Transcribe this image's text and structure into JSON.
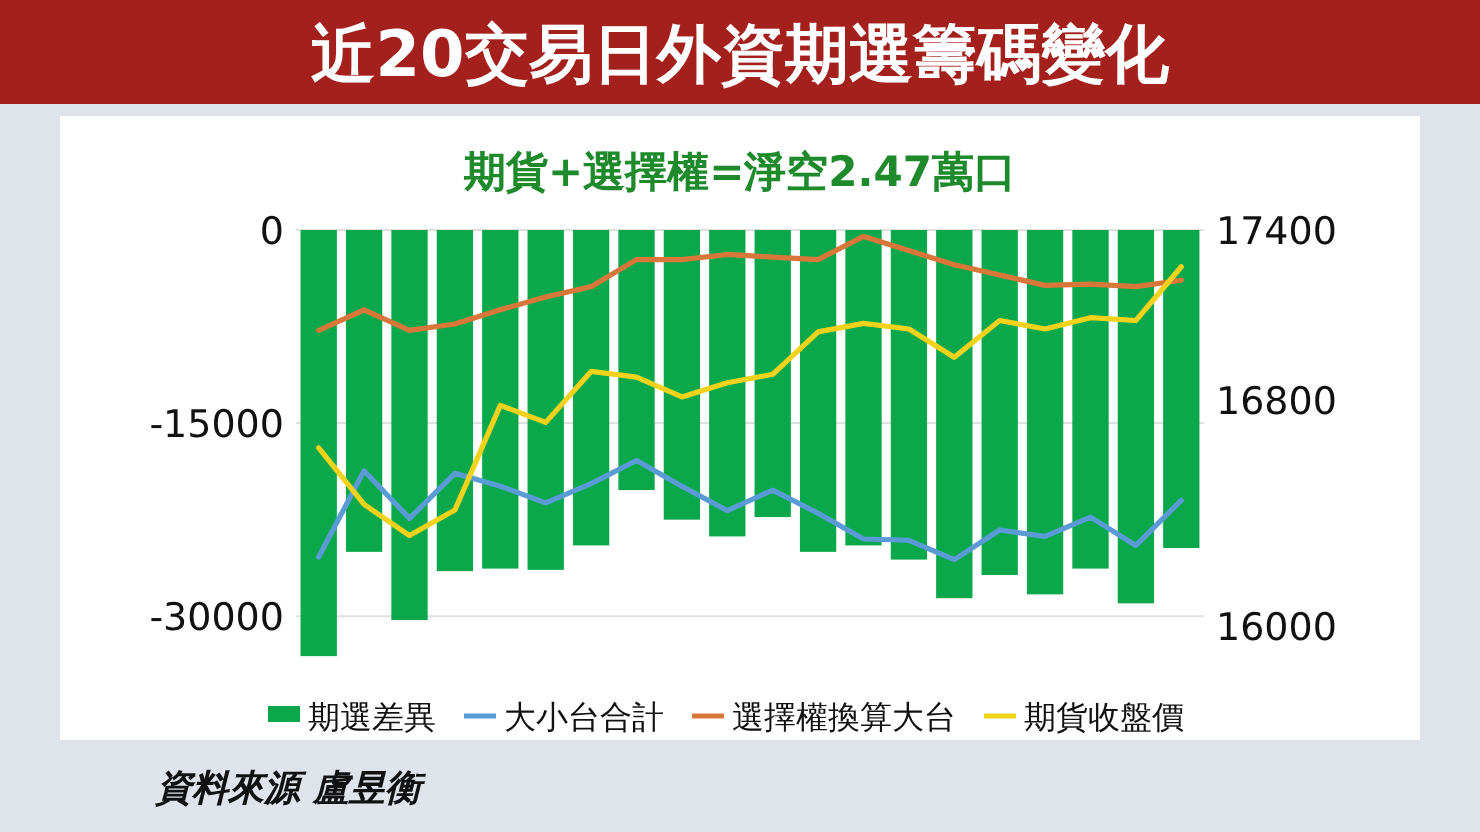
{
  "chart_data": {
    "type": "bar",
    "title": "近20交易日外資期選籌碼變化",
    "subtitle": "期貨+選擇權=淨空2.47萬口",
    "annotations": [
      "資料來源 盧昱衡"
    ],
    "categories": [
      null,
      null,
      null,
      null,
      null,
      null,
      null,
      null,
      null,
      null,
      null,
      null,
      null,
      null,
      null,
      null,
      null,
      null,
      null,
      null
    ],
    "series": [
      {
        "name": "期選差異",
        "color": "#0aa84a",
        "values": [
          -33100,
          -25000,
          -30300,
          -26500,
          -26300,
          -26400,
          -24500,
          -20200,
          -22500,
          -23800,
          -22300,
          -25000,
          -24500,
          -25600,
          -28600,
          -26800,
          -28300,
          -26300,
          -29000,
          -24700
        ]
      },
      {
        "name": "大小台合計",
        "type": "line",
        "color": "#5b9bd5",
        "values": [
          -25400,
          -18700,
          -22400,
          -18900,
          -19900,
          -21200,
          -19700,
          -17900,
          -19900,
          -21800,
          -20200,
          -22000,
          -24000,
          -24100,
          -25600,
          -23300,
          -23800,
          -22300,
          -24500,
          -21000
        ]
      },
      {
        "name": "選擇權換算大台",
        "type": "line",
        "color": "#d9773a",
        "values": [
          -7800,
          -6200,
          -7800,
          -7300,
          -6200,
          -5200,
          -4400,
          -2300,
          -2300,
          -1900,
          -2100,
          -2300,
          -500,
          -1600,
          -2700,
          -3500,
          -4300,
          -4200,
          -4400,
          -3900
        ]
      },
      {
        "name": "期貨收盤價",
        "type": "line",
        "axis": "y2",
        "color": "#f2d21b",
        "values": [
          16630,
          16430,
          16320,
          16410,
          16780,
          16720,
          16900,
          16880,
          16810,
          16860,
          16890,
          17040,
          17070,
          17050,
          16950,
          17080,
          17050,
          17090,
          17080,
          17270
        ]
      }
    ],
    "ylim": [
      -33400,
      0
    ],
    "yticks": [
      0,
      -15000,
      -30000
    ],
    "y2lim": [
      15880,
      17400
    ],
    "y2ticks": [
      16000,
      16800,
      17400
    ],
    "grid": "y",
    "legend": "bottom"
  }
}
